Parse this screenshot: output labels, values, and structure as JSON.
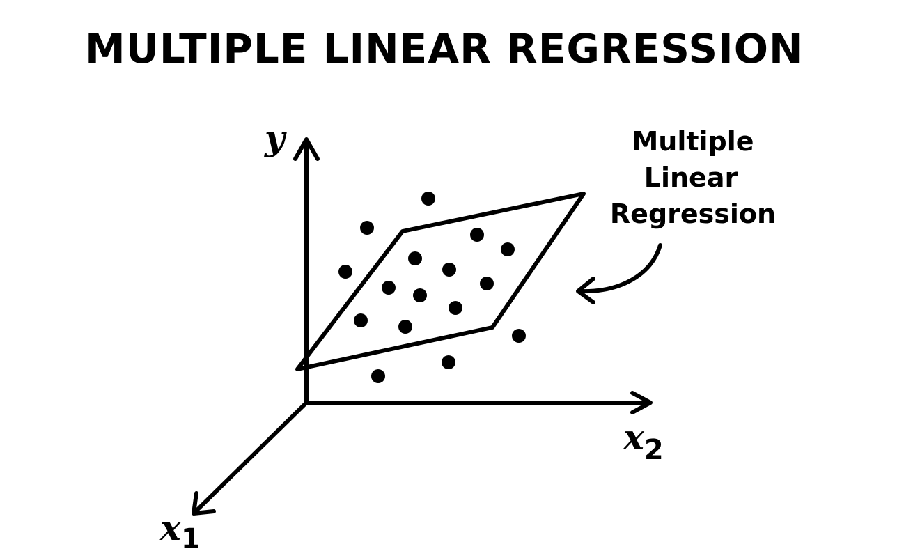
{
  "title": "MULTIPLE LINEAR REGRESSION",
  "axes": {
    "y": "y",
    "x2": {
      "var": "x",
      "sub": "2"
    },
    "x1": {
      "var": "x",
      "sub": "1"
    }
  },
  "callout": {
    "lines": [
      "Multiple",
      "Linear",
      "Regression"
    ]
  },
  "colors": {
    "ink": "#000000",
    "background": "#ffffff"
  }
}
